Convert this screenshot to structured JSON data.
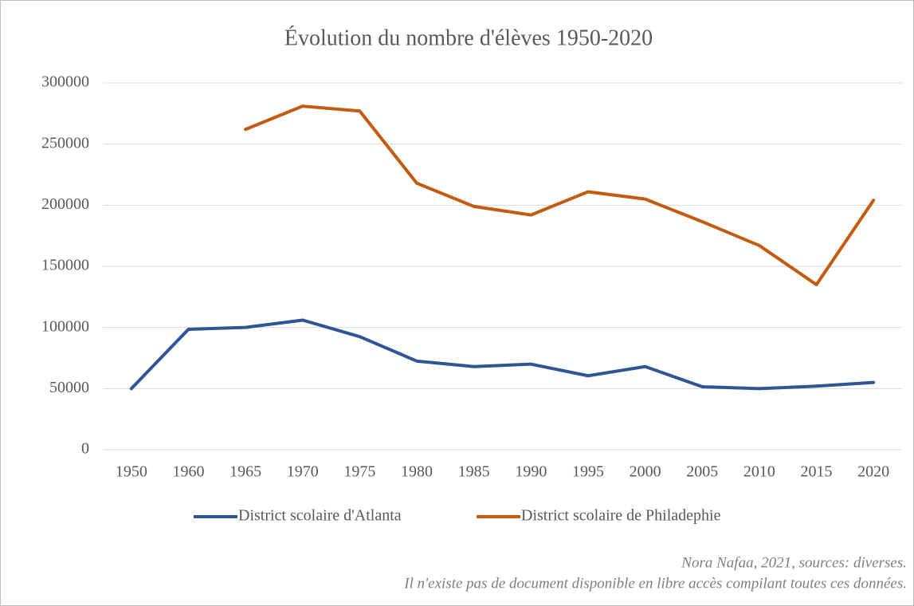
{
  "chart_data": {
    "type": "line",
    "title": "Évolution du nombre d'élèves 1950-2020",
    "categories": [
      "1950",
      "1960",
      "1965",
      "1970",
      "1975",
      "1980",
      "1985",
      "1990",
      "1995",
      "2000",
      "2005",
      "2010",
      "2015",
      "2020"
    ],
    "series": [
      {
        "name": "District scolaire d'Atlanta",
        "color": "#2f5597",
        "values": [
          50000,
          98500,
          100000,
          106000,
          92500,
          72500,
          68000,
          70000,
          60500,
          68000,
          51500,
          50000,
          52000,
          55000
        ]
      },
      {
        "name": "District scolaire de Philadephie",
        "color": "#c55a11",
        "values": [
          null,
          null,
          262000,
          281000,
          277000,
          218000,
          199000,
          192000,
          211000,
          205000,
          186500,
          167000,
          135000,
          204000
        ]
      }
    ],
    "ylim": [
      0,
      300000
    ],
    "yticks": [
      0,
      50000,
      100000,
      150000,
      200000,
      250000,
      300000
    ],
    "grid": true,
    "legend": "bottom",
    "notes": [
      "Nora Nafaa, 2021, sources: diverses.",
      "Il n'existe pas de document disponible en libre accès compilant toutes ces données."
    ]
  }
}
